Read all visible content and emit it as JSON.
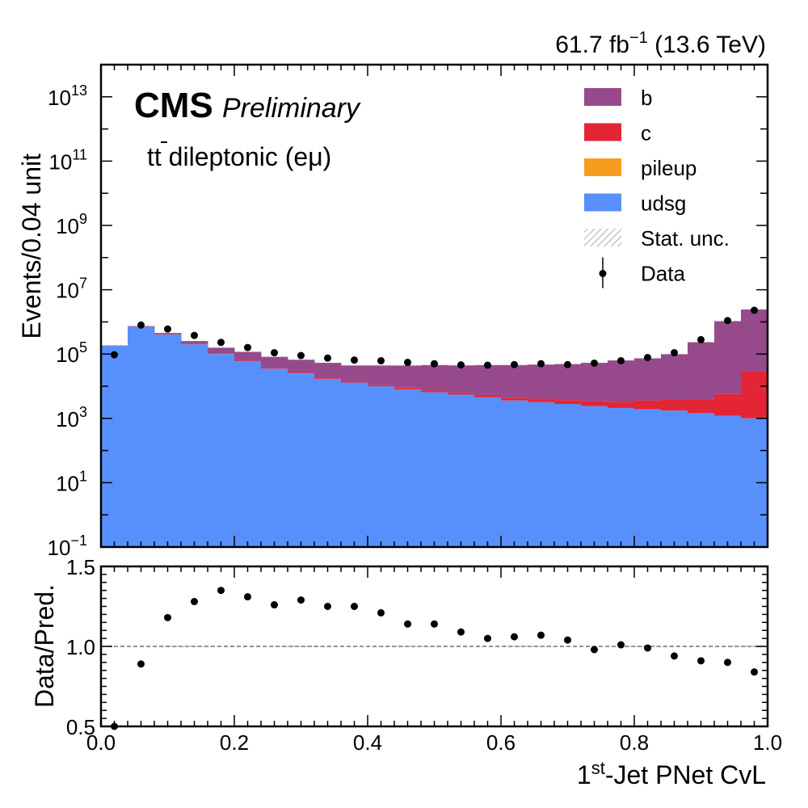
{
  "lumi": {
    "prefix": "61.7 fb",
    "exponent": "−1",
    "suffix": " (13.6 TeV)"
  },
  "cms": {
    "label": "CMS",
    "sublabel": "Preliminary",
    "channel_t": "t",
    "channel_tbar": "t",
    "channel_rest": " dileptonic (eμ)"
  },
  "colors": {
    "b": "#964a8b",
    "c": "#e42536",
    "pileup": "#f89c20",
    "udsg": "#5790fc",
    "data": "#000000",
    "unc": "#9a9a9a"
  },
  "chart_data": [
    {
      "type": "bar",
      "stacked": true,
      "ylabel": "Events/0.04 unit",
      "yscale": "log",
      "ylim": [
        0.1,
        100000000000000.0
      ],
      "xlim": [
        0.0,
        1.0
      ],
      "ytick_labels": [
        {
          "base": "10",
          "exp": "−1",
          "value": 0.1
        },
        {
          "base": "10",
          "exp": "1",
          "value": 10
        },
        {
          "base": "10",
          "exp": "3",
          "value": 1000
        },
        {
          "base": "10",
          "exp": "5",
          "value": 100000
        },
        {
          "base": "10",
          "exp": "7",
          "value": 10000000
        },
        {
          "base": "10",
          "exp": "9",
          "value": 1000000000
        },
        {
          "base": "10",
          "exp": "11",
          "value": 100000000000
        },
        {
          "base": "10",
          "exp": "13",
          "value": 10000000000000
        }
      ],
      "bin_edges": [
        0.0,
        0.04,
        0.08,
        0.12,
        0.16,
        0.2,
        0.24,
        0.28,
        0.32,
        0.36,
        0.4,
        0.44,
        0.48,
        0.52,
        0.56,
        0.6,
        0.64,
        0.68,
        0.72,
        0.76,
        0.8,
        0.84,
        0.88,
        0.92,
        0.96,
        1.0
      ],
      "legend": [
        {
          "key": "b",
          "label": "b",
          "style": "fill"
        },
        {
          "key": "c",
          "label": "c",
          "style": "fill"
        },
        {
          "key": "pileup",
          "label": "pileup",
          "style": "fill"
        },
        {
          "key": "udsg",
          "label": "udsg",
          "style": "fill"
        },
        {
          "key": "unc",
          "label": "Stat. unc.",
          "style": "hatch"
        },
        {
          "key": "data",
          "label": "Data",
          "style": "point"
        }
      ],
      "legend_position": "top-right",
      "series": [
        {
          "name": "udsg",
          "values": [
            180000,
            700000,
            400000,
            200000,
            100000,
            60000,
            35000,
            25000,
            17000,
            13000,
            10000,
            8000,
            6500,
            5500,
            4500,
            3600,
            3200,
            2800,
            2400,
            2100,
            1900,
            1750,
            1450,
            1200,
            1000
          ]
        },
        {
          "name": "pileup",
          "values": [
            200,
            600,
            350,
            180,
            90,
            50,
            35,
            25,
            18,
            14,
            12,
            10,
            8,
            7,
            6,
            5,
            4,
            4,
            3,
            3,
            3,
            3,
            3,
            3,
            3
          ]
        },
        {
          "name": "c",
          "values": [
            1500,
            7000,
            6000,
            4000,
            2800,
            2200,
            1800,
            1500,
            1300,
            1200,
            1100,
            1000,
            900,
            850,
            800,
            800,
            900,
            900,
            1000,
            1200,
            1700,
            2200,
            2300,
            4500,
            28000
          ]
        },
        {
          "name": "b",
          "values": [
            3500,
            35000,
            45000,
            50000,
            55000,
            55000,
            45000,
            40000,
            35000,
            30000,
            33000,
            35000,
            38000,
            38000,
            40000,
            41000,
            43000,
            45000,
            50000,
            60000,
            70000,
            95000,
            230000,
            1050000,
            2400000
          ]
        },
        {
          "name": "Data",
          "values": [
            95000,
            800000,
            600000,
            380000,
            230000,
            160000,
            110000,
            90000,
            75000,
            65000,
            62000,
            55000,
            50000,
            46000,
            45000,
            47000,
            50000,
            47000,
            52000,
            62000,
            78000,
            110000,
            280000,
            1100000,
            2300000
          ]
        }
      ]
    },
    {
      "type": "scatter",
      "xlabel_sup": "st",
      "xlabel_pre": "1",
      "xlabel_post": "-Jet PNet CvL",
      "ylabel": "Data/Pred.",
      "xlim": [
        0.0,
        1.0
      ],
      "ylim": [
        0.5,
        1.5
      ],
      "reference_line": 1.0,
      "xtick_labels": [
        "0.0",
        "0.2",
        "0.4",
        "0.6",
        "0.8",
        "1.0"
      ],
      "ytick_labels": [
        "0.5",
        "1.0",
        "1.5"
      ],
      "x": [
        0.02,
        0.06,
        0.1,
        0.14,
        0.18,
        0.22,
        0.26,
        0.3,
        0.34,
        0.38,
        0.42,
        0.46,
        0.5,
        0.54,
        0.58,
        0.62,
        0.66,
        0.7,
        0.74,
        0.78,
        0.82,
        0.86,
        0.9,
        0.94,
        0.98
      ],
      "y": [
        0.49,
        0.89,
        1.18,
        1.28,
        1.35,
        1.31,
        1.26,
        1.29,
        1.25,
        1.25,
        1.21,
        1.14,
        1.14,
        1.09,
        1.05,
        1.06,
        1.07,
        1.04,
        0.98,
        1.01,
        0.99,
        0.94,
        0.91,
        0.9,
        0.84
      ]
    }
  ]
}
